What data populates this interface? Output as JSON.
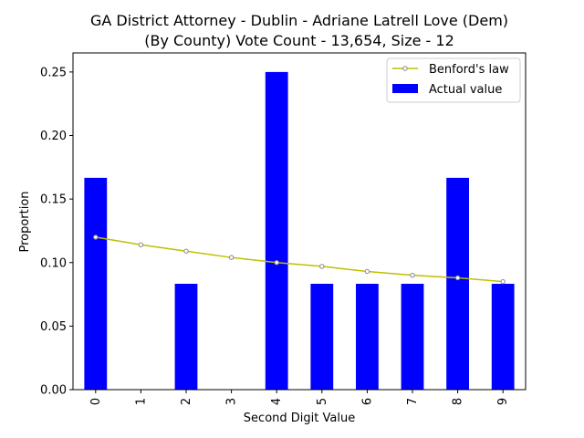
{
  "chart_data": {
    "type": "bar",
    "title_line1": "GA District Attorney - Dublin - Adriane Latrell Love (Dem)",
    "title_line2": "(By County) Vote Count - 13,654, Size - 12",
    "xlabel": "Second Digit Value",
    "ylabel": "Proportion",
    "categories": [
      "0",
      "1",
      "2",
      "3",
      "4",
      "5",
      "6",
      "7",
      "8",
      "9"
    ],
    "ylim": [
      0,
      0.265
    ],
    "yticks": [
      0.0,
      0.05,
      0.1,
      0.15,
      0.2,
      0.25
    ],
    "ytick_labels": [
      "0.00",
      "0.05",
      "0.10",
      "0.15",
      "0.20",
      "0.25"
    ],
    "grid": false,
    "legend_position": "top-right",
    "series": [
      {
        "name": "Benford's law",
        "kind": "line",
        "color": "#bfbf00",
        "values": [
          0.12,
          0.114,
          0.109,
          0.104,
          0.1,
          0.097,
          0.093,
          0.09,
          0.088,
          0.085
        ]
      },
      {
        "name": "Actual value",
        "kind": "bar",
        "color": "#0000ff",
        "values": [
          0.1667,
          0.0,
          0.0833,
          0.0,
          0.25,
          0.0833,
          0.0833,
          0.0833,
          0.1667,
          0.0833
        ]
      }
    ]
  }
}
